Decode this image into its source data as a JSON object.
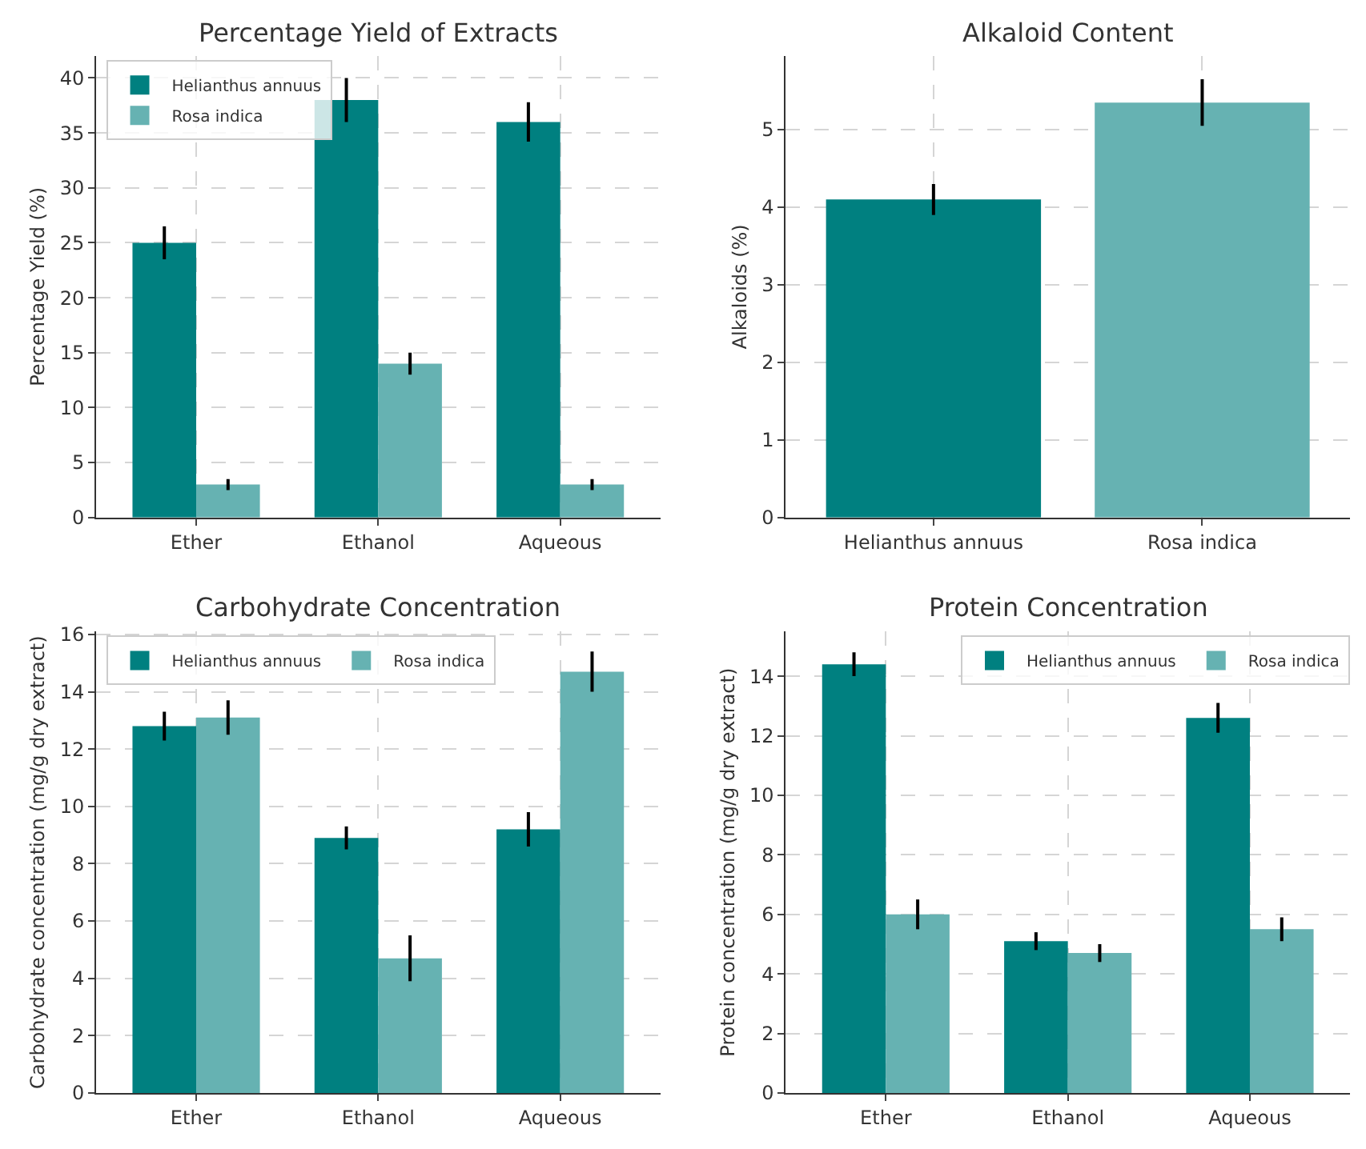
{
  "chart_data": [
    {
      "type": "bar",
      "title": "Percentage Yield of Extracts",
      "ylabel": "Percentage Yield (%)",
      "categories": [
        "Ether",
        "Ethanol",
        "Aqueous"
      ],
      "series": [
        {
          "name": "Helianthus annuus",
          "color": "#008080",
          "values": [
            25,
            38,
            36
          ],
          "errors": [
            1.5,
            2,
            1.8
          ]
        },
        {
          "name": "Rosa indica",
          "color": "#66b2b2",
          "values": [
            3,
            14,
            3
          ],
          "errors": [
            0.5,
            1,
            0.5
          ]
        }
      ],
      "ylim": [
        0,
        42
      ],
      "yticks": [
        0,
        5,
        10,
        15,
        20,
        25,
        30,
        35,
        40
      ],
      "grid": true,
      "legend": "top left"
    },
    {
      "type": "bar",
      "title": "Alkaloid Content",
      "ylabel": "Alkaloids (%)",
      "categories": [
        "Helianthus annuus",
        "Rosa indica"
      ],
      "values": [
        4.1,
        5.35
      ],
      "colors": [
        "#008080",
        "#66b2b2"
      ],
      "errors": [
        0.2,
        0.3
      ],
      "ylim": [
        0,
        5.95
      ],
      "yticks": [
        0,
        1,
        2,
        3,
        4,
        5
      ],
      "grid": true
    },
    {
      "type": "bar",
      "title": "Carbohydrate Concentration",
      "ylabel": "Carbohydrate concentration (mg/g dry extract)",
      "categories": [
        "Ether",
        "Ethanol",
        "Aqueous"
      ],
      "series": [
        {
          "name": "Helianthus annuus",
          "color": "#008080",
          "values": [
            12.8,
            8.9,
            9.2
          ],
          "errors": [
            0.5,
            0.4,
            0.6
          ]
        },
        {
          "name": "Rosa indica",
          "color": "#66b2b2",
          "values": [
            13.1,
            4.7,
            14.7
          ],
          "errors": [
            0.6,
            0.8,
            0.7
          ]
        }
      ],
      "ylim": [
        0,
        16.1
      ],
      "yticks": [
        0,
        2,
        4,
        6,
        8,
        10,
        12,
        14,
        16
      ],
      "grid": true,
      "legend": "top left"
    },
    {
      "type": "bar",
      "title": "Protein Concentration",
      "ylabel": "Protein concentration (mg/g dry extract)",
      "categories": [
        "Ether",
        "Ethanol",
        "Aqueous"
      ],
      "series": [
        {
          "name": "Helianthus annuus",
          "color": "#008080",
          "values": [
            14.4,
            5.1,
            12.6
          ],
          "errors": [
            0.4,
            0.3,
            0.5
          ]
        },
        {
          "name": "Rosa indica",
          "color": "#66b2b2",
          "values": [
            6.0,
            4.7,
            5.5
          ],
          "errors": [
            0.5,
            0.3,
            0.4
          ]
        }
      ],
      "ylim": [
        0,
        15.5
      ],
      "yticks": [
        0,
        2,
        4,
        6,
        8,
        10,
        12,
        14
      ],
      "grid": true,
      "legend": "top right"
    }
  ]
}
